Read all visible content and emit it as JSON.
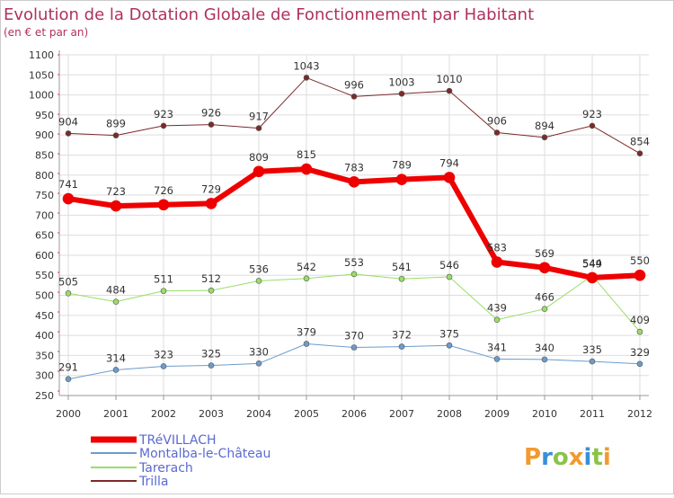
{
  "chart_data": {
    "type": "line",
    "title": "Evolution de la Dotation Globale de Fonctionnement par Habitant",
    "subtitle": "(en € et par an)",
    "xlabel": "",
    "ylabel": "",
    "x": [
      "2000",
      "2001",
      "2002",
      "2003",
      "2004",
      "2005",
      "2006",
      "2007",
      "2008",
      "2009",
      "2010",
      "2011",
      "2012"
    ],
    "ylim": [
      250,
      1100
    ],
    "yticks": [
      250,
      300,
      350,
      400,
      450,
      500,
      550,
      600,
      650,
      700,
      750,
      800,
      850,
      900,
      950,
      1000,
      1050,
      1100
    ],
    "grid": true,
    "legend_position": "bottom-left",
    "series": [
      {
        "name": "Trilla",
        "color": "#7a2a2a",
        "width": 1,
        "values": [
          904,
          899,
          923,
          926,
          917,
          1043,
          996,
          1003,
          1010,
          906,
          894,
          923,
          854
        ]
      },
      {
        "name": "Tarerach",
        "color": "#99dd66",
        "width": 1,
        "values": [
          505,
          484,
          511,
          512,
          536,
          542,
          553,
          541,
          546,
          439,
          466,
          549,
          409
        ]
      },
      {
        "name": "Montalba-le-Château",
        "color": "#6b9ccc",
        "width": 1,
        "values": [
          291,
          314,
          323,
          325,
          330,
          379,
          370,
          372,
          375,
          341,
          340,
          335,
          329
        ]
      },
      {
        "name": "TRéVILLACH",
        "color": "#ee0000",
        "width": 6,
        "values": [
          741,
          723,
          726,
          729,
          809,
          815,
          783,
          789,
          794,
          583,
          569,
          544,
          550
        ]
      }
    ],
    "legend": [
      "TRéVILLACH",
      "Montalba-le-Château",
      "Tarerach",
      "Trilla"
    ]
  },
  "colors": {
    "title": "#b03060",
    "axis_text": "#333333",
    "grid": "#dddddd",
    "legend_text": "#5a6ad0"
  },
  "logo": {
    "text": "Proxiti"
  }
}
